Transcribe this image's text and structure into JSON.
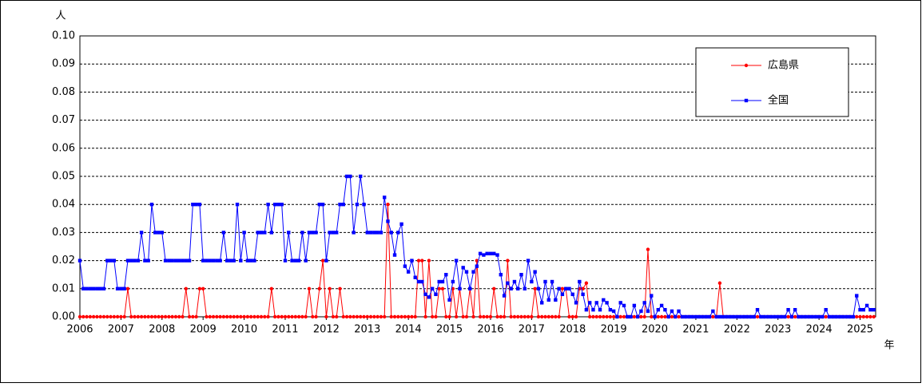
{
  "chart_data": {
    "type": "line",
    "y_unit": "人",
    "x_unit": "年",
    "categories": [
      "2006",
      null,
      null,
      null,
      null,
      null,
      null,
      null,
      null,
      null,
      null,
      null,
      "2007",
      null,
      null,
      null,
      null,
      null,
      null,
      null,
      null,
      null,
      null,
      null,
      "2008",
      null,
      null,
      null,
      null,
      null,
      null,
      null,
      null,
      null,
      null,
      null,
      "2009",
      null,
      null,
      null,
      null,
      null,
      null,
      null,
      null,
      null,
      null,
      null,
      "2010",
      null,
      null,
      null,
      null,
      null,
      null,
      null,
      null,
      null,
      null,
      null,
      "2011",
      null,
      null,
      null,
      null,
      null,
      null,
      null,
      null,
      null,
      null,
      null,
      "2012",
      null,
      null,
      null,
      null,
      null,
      null,
      null,
      null,
      null,
      null,
      null,
      "2013",
      null,
      null,
      null,
      null,
      null,
      null,
      null,
      null,
      null,
      null,
      null,
      "2014",
      null,
      null,
      null,
      null,
      null,
      null,
      null,
      null,
      null,
      null,
      null,
      "2015",
      null,
      null,
      null,
      null,
      null,
      null,
      null,
      null,
      null,
      null,
      null,
      "2016",
      null,
      null,
      null,
      null,
      null,
      null,
      null,
      null,
      null,
      null,
      null,
      "2017",
      null,
      null,
      null,
      null,
      null,
      null,
      null,
      null,
      null,
      null,
      null,
      "2018",
      null,
      null,
      null,
      null,
      null,
      null,
      null,
      null,
      null,
      null,
      null,
      "2019",
      null,
      null,
      null,
      null,
      null,
      null,
      null,
      null,
      null,
      null,
      null,
      "2020",
      null,
      null,
      null,
      null,
      null,
      null,
      null,
      null,
      null,
      null,
      null,
      "2021",
      null,
      null,
      null,
      null,
      null,
      null,
      null,
      null,
      null,
      null,
      null,
      "2022",
      null,
      null,
      null,
      null,
      null,
      null,
      null,
      null,
      null,
      null,
      null,
      "2023",
      null,
      null,
      null,
      null,
      null,
      null,
      null,
      null,
      null,
      null,
      null,
      "2024",
      null,
      null,
      null,
      null,
      null,
      null,
      null,
      null,
      null,
      null,
      null,
      "2025",
      null,
      null,
      null,
      null
    ],
    "series": [
      {
        "name": "広島県",
        "color": "#ff0000",
        "marker": "circle",
        "values": [
          0,
          0,
          0,
          0,
          0,
          0,
          0,
          0,
          0,
          0,
          0,
          0,
          0,
          0,
          0.01,
          0,
          0,
          0,
          0,
          0,
          0,
          0,
          0,
          0,
          0,
          0,
          0,
          0,
          0,
          0,
          0,
          0.01,
          0,
          0,
          0,
          0.01,
          0.01,
          0,
          0,
          0,
          0,
          0,
          0,
          0,
          0,
          0,
          0,
          0,
          0,
          0,
          0,
          0,
          0,
          0,
          0,
          0,
          0.01,
          0,
          0,
          0,
          0,
          0,
          0,
          0,
          0,
          0,
          0,
          0.01,
          0,
          0,
          0.01,
          0.02,
          0,
          0.01,
          0,
          0,
          0.01,
          0,
          0,
          0,
          0,
          0,
          0,
          0,
          0,
          0,
          0,
          0,
          0,
          0,
          0.04,
          0,
          0,
          0,
          0,
          0,
          0,
          0,
          0,
          0.02,
          0.02,
          0,
          0.02,
          0,
          0,
          0.01,
          0.01,
          0,
          0,
          0.01,
          0,
          0.01,
          0,
          0,
          0.01,
          0,
          0.02,
          0,
          0,
          0,
          0,
          0.01,
          0,
          0,
          0,
          0.02,
          0,
          0,
          0,
          0,
          0,
          0,
          0,
          0.01,
          0,
          0,
          0,
          0,
          0,
          0,
          0,
          0.01,
          0.01,
          0,
          0,
          0,
          0.01,
          0.01,
          0.012,
          0,
          0,
          0,
          0,
          0,
          0,
          0,
          0,
          0,
          0,
          0,
          0,
          0,
          0,
          0,
          0,
          0,
          0.024,
          0,
          0,
          0,
          0,
          0,
          0,
          0,
          0,
          0,
          0,
          0,
          0,
          0,
          0,
          0,
          0,
          0,
          0,
          0,
          0,
          0.012,
          0,
          0,
          0,
          0,
          0,
          0,
          0,
          0,
          0,
          0,
          0,
          0,
          0,
          0,
          0,
          0,
          0,
          0,
          0,
          0,
          0,
          0,
          0,
          0,
          0,
          0,
          0,
          0,
          0,
          0,
          0,
          0,
          0,
          0,
          0,
          0,
          0,
          0,
          0,
          0,
          0,
          0,
          0,
          0,
          0
        ]
      },
      {
        "name": "全国",
        "color": "#0000ff",
        "marker": "square",
        "values": [
          0.02,
          0.01,
          0.01,
          0.01,
          0.01,
          0.01,
          0.01,
          0.01,
          0.02,
          0.02,
          0.02,
          0.01,
          0.01,
          0.01,
          0.02,
          0.02,
          0.02,
          0.02,
          0.03,
          0.02,
          0.02,
          0.04,
          0.03,
          0.03,
          0.03,
          0.02,
          0.02,
          0.02,
          0.02,
          0.02,
          0.02,
          0.02,
          0.02,
          0.04,
          0.04,
          0.04,
          0.02,
          0.02,
          0.02,
          0.02,
          0.02,
          0.02,
          0.03,
          0.02,
          0.02,
          0.02,
          0.04,
          0.02,
          0.03,
          0.02,
          0.02,
          0.02,
          0.03,
          0.03,
          0.03,
          0.04,
          0.03,
          0.04,
          0.04,
          0.04,
          0.02,
          0.03,
          0.02,
          0.02,
          0.02,
          0.03,
          0.02,
          0.03,
          0.03,
          0.03,
          0.04,
          0.04,
          0.02,
          0.03,
          0.03,
          0.03,
          0.04,
          0.04,
          0.05,
          0.05,
          0.03,
          0.04,
          0.05,
          0.04,
          0.03,
          0.03,
          0.03,
          0.03,
          0.03,
          0.0425,
          0.034,
          0.03,
          0.022,
          0.03,
          0.033,
          0.018,
          0.016,
          0.02,
          0.014,
          0.0125,
          0.0125,
          0.008,
          0.007,
          0.01,
          0.008,
          0.0125,
          0.0125,
          0.015,
          0.006,
          0.0125,
          0.02,
          0.01,
          0.0175,
          0.016,
          0.01,
          0.016,
          0.018,
          0.0225,
          0.022,
          0.0225,
          0.0225,
          0.0225,
          0.022,
          0.015,
          0.0075,
          0.012,
          0.01,
          0.0125,
          0.01,
          0.015,
          0.01,
          0.02,
          0.0125,
          0.016,
          0.01,
          0.005,
          0.0125,
          0.006,
          0.0125,
          0.006,
          0.01,
          0.008,
          0.01,
          0.01,
          0.008,
          0.005,
          0.0125,
          0.008,
          0.0025,
          0.005,
          0.0025,
          0.005,
          0.0025,
          0.006,
          0.005,
          0.0025,
          0.002,
          0,
          0.005,
          0.004,
          0,
          0,
          0.004,
          0,
          0.002,
          0.005,
          0.002,
          0.0075,
          0,
          0.0025,
          0.004,
          0.0025,
          0,
          0.002,
          0,
          0.002,
          0,
          0,
          0,
          0,
          0,
          0,
          0,
          0,
          0,
          0.002,
          0,
          0,
          0,
          0,
          0,
          0,
          0,
          0,
          0,
          0,
          0,
          0,
          0.0025,
          0,
          0,
          0,
          0,
          0,
          0,
          0,
          0,
          0.0025,
          0,
          0.0025,
          0,
          0,
          0,
          0,
          0,
          0,
          0,
          0,
          0.0025,
          0,
          0,
          0,
          0,
          0,
          0,
          0,
          0,
          0.0075,
          0.0025,
          0.0025,
          0.004,
          0.0025,
          0.0025
        ]
      }
    ],
    "ylim": [
      0,
      0.1
    ],
    "yticks": [
      {
        "value": 0,
        "label": "0.00"
      },
      0.01,
      0.02,
      0.03,
      0.04,
      0.05,
      0.06,
      0.07,
      0.08,
      0.09,
      {
        "value": 0.1,
        "label": "0.10"
      }
    ],
    "grid": true,
    "legend": "top-right"
  }
}
